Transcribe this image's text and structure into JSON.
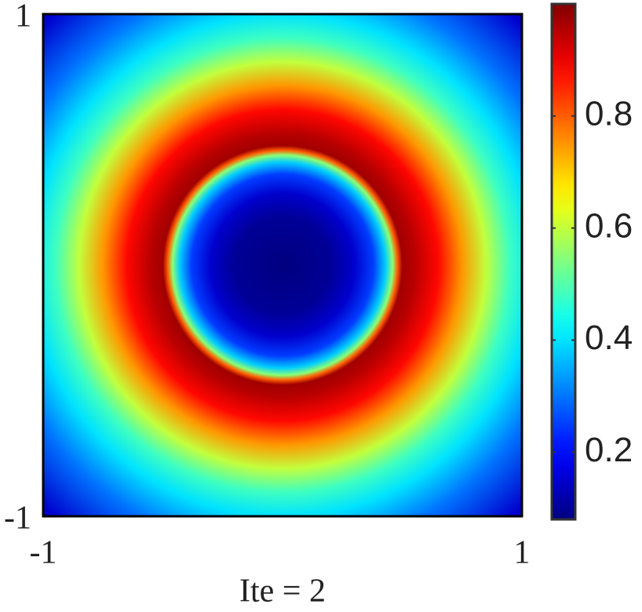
{
  "chart_data": {
    "type": "heatmap",
    "xlabel": "Ite = 2",
    "xlim": [
      -1,
      1
    ],
    "ylim": [
      -1,
      1
    ],
    "xticks": [
      -1,
      1
    ],
    "yticks": [
      -1,
      1
    ],
    "colormap": "jet",
    "clim": [
      0.08,
      1.0
    ],
    "cticks": [
      0.2,
      0.4,
      0.6,
      0.8
    ],
    "radial_profile": {
      "r": [
        0,
        0.2,
        0.3,
        0.38,
        0.43,
        0.46,
        0.48,
        0.5,
        0.55,
        0.65,
        0.75,
        0.85,
        0.95,
        1.05,
        1.2,
        1.42
      ],
      "values": [
        0.05,
        0.1,
        0.15,
        0.25,
        0.38,
        0.55,
        0.8,
        0.97,
        0.95,
        0.88,
        0.75,
        0.6,
        0.48,
        0.4,
        0.3,
        0.15
      ]
    }
  }
}
